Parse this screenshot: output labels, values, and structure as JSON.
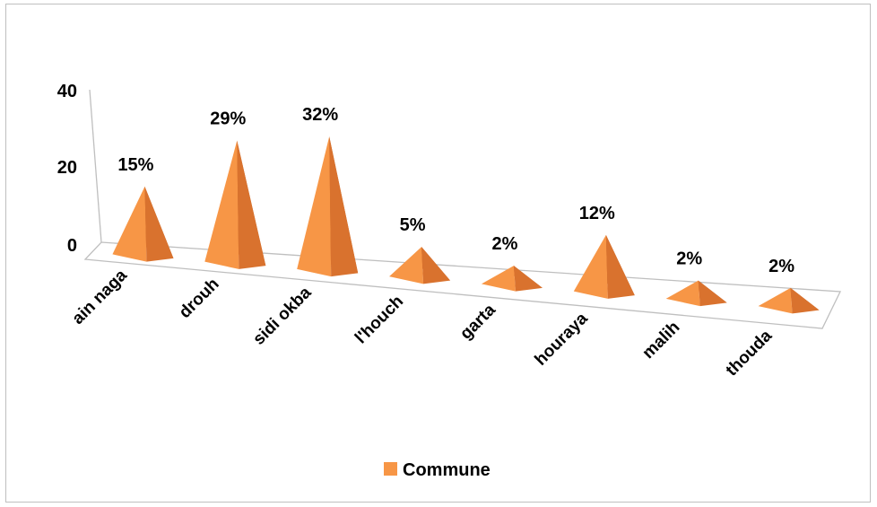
{
  "chart_data": {
    "type": "bar",
    "style": "3d-pyramid",
    "categories": [
      "ain naga",
      "drouh",
      "sidi okba",
      "l'houch",
      "garta",
      "houraya",
      "malih",
      "thouda"
    ],
    "series": [
      {
        "name": "Commune",
        "values": [
          15,
          29,
          32,
          5,
          2,
          12,
          2,
          2
        ],
        "data_labels": [
          "15%",
          "29%",
          "32%",
          "5%",
          "2%",
          "12%",
          "2%",
          "2%"
        ]
      }
    ],
    "y_ticks": [
      "0",
      "20",
      "40"
    ],
    "ylim": [
      0,
      40
    ],
    "grid": false,
    "legend_position": "bottom",
    "colors": {
      "face": "#f79646",
      "light": "#f9a35e",
      "shade": "#c0652a",
      "axis": "#bfbfbf"
    }
  }
}
